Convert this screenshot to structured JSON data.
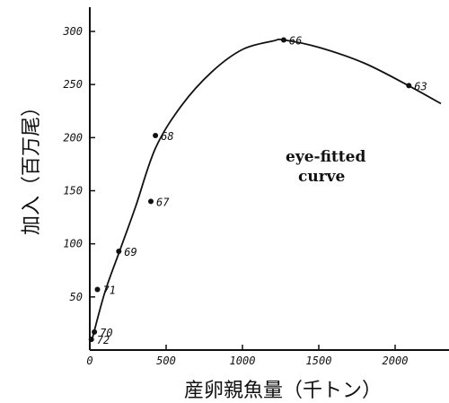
{
  "chart_data": {
    "type": "scatter",
    "xlabel": "産卵親魚量（千トン）",
    "ylabel": "加入（百万尾）",
    "xlim": [
      0,
      2300
    ],
    "ylim": [
      0,
      320
    ],
    "x_ticks": [
      "0",
      "500",
      "1000",
      "1500",
      "2000"
    ],
    "y_ticks": [
      "50",
      "100",
      "150",
      "200",
      "250",
      "300"
    ],
    "points": [
      {
        "label": "72",
        "x": 10,
        "y": 10
      },
      {
        "label": "70",
        "x": 30,
        "y": 17
      },
      {
        "label": "71",
        "x": 50,
        "y": 57
      },
      {
        "label": "69",
        "x": 190,
        "y": 93
      },
      {
        "label": "67",
        "x": 400,
        "y": 140
      },
      {
        "label": "68",
        "x": 430,
        "y": 202
      },
      {
        "label": "66",
        "x": 1270,
        "y": 292
      },
      {
        "label": "63",
        "x": 2090,
        "y": 249
      }
    ],
    "curve": {
      "name": "eye-fitted curve",
      "annotation_line1": "eye-fitted",
      "annotation_line2": "curve",
      "x": [
        15,
        100,
        200,
        300,
        430,
        600,
        800,
        1000,
        1200,
        1270,
        1500,
        1800,
        2100,
        2300
      ],
      "y": [
        10,
        55,
        95,
        135,
        190,
        230,
        262,
        283,
        291,
        292,
        285,
        270,
        248,
        232
      ]
    }
  }
}
